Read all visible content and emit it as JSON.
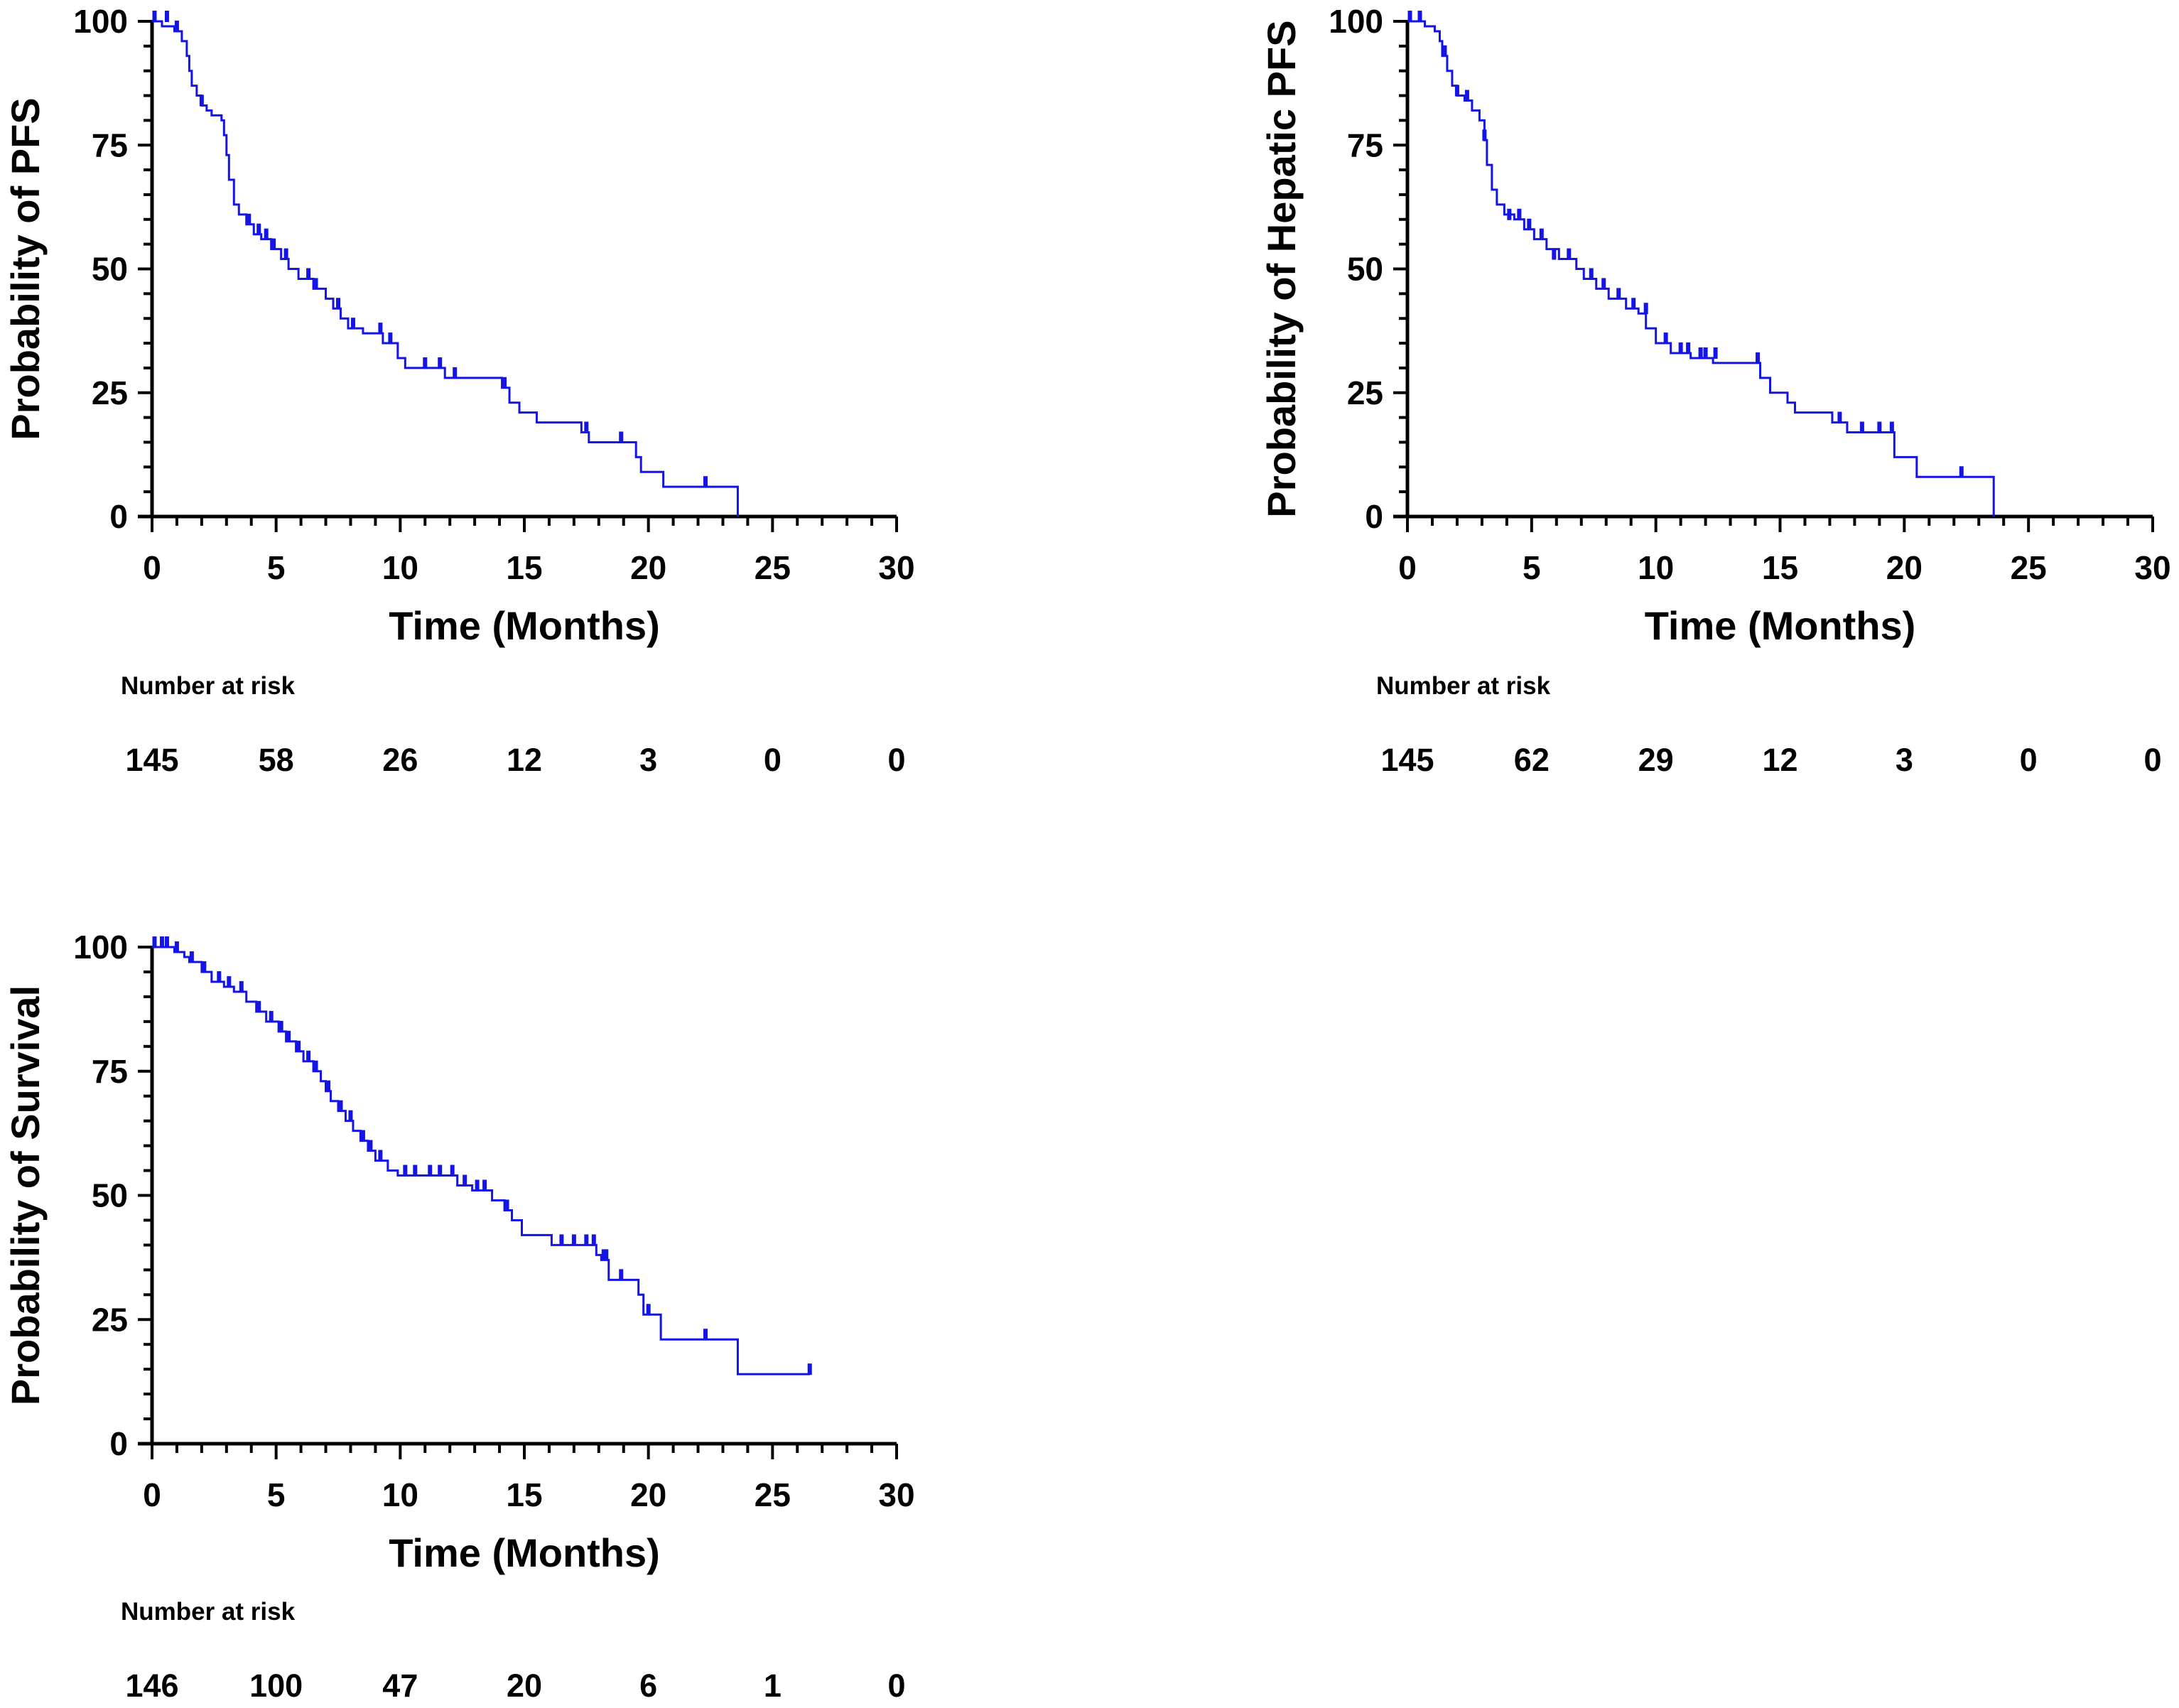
{
  "chart_data": [
    {
      "type": "line",
      "subtype": "kaplan-meier",
      "title": "",
      "xlabel": "Time (Months)",
      "ylabel": "Probability of PFS",
      "xlim": [
        0,
        30
      ],
      "ylim": [
        0,
        100
      ],
      "x_ticks": [
        "0",
        "5",
        "10",
        "15",
        "20",
        "25",
        "30"
      ],
      "y_ticks": [
        "0",
        "25",
        "50",
        "75",
        "100"
      ],
      "line_color": "#1414e6",
      "series": [
        {
          "name": "PFS",
          "steps": [
            [
              0,
              100
            ],
            [
              0.4,
              99
            ],
            [
              0.9,
              98
            ],
            [
              1.2,
              96
            ],
            [
              1.4,
              93
            ],
            [
              1.5,
              90
            ],
            [
              1.6,
              87
            ],
            [
              1.8,
              85
            ],
            [
              2.0,
              83
            ],
            [
              2.2,
              82
            ],
            [
              2.4,
              81
            ],
            [
              2.8,
              80
            ],
            [
              2.9,
              77
            ],
            [
              3.0,
              73
            ],
            [
              3.1,
              68
            ],
            [
              3.3,
              63
            ],
            [
              3.5,
              61
            ],
            [
              3.8,
              59
            ],
            [
              4.1,
              57
            ],
            [
              4.4,
              56
            ],
            [
              4.8,
              54
            ],
            [
              5.2,
              52
            ],
            [
              5.5,
              50
            ],
            [
              5.9,
              48
            ],
            [
              6.5,
              46
            ],
            [
              7.0,
              44
            ],
            [
              7.3,
              42
            ],
            [
              7.6,
              40
            ],
            [
              7.9,
              38
            ],
            [
              8.5,
              37
            ],
            [
              9.3,
              35
            ],
            [
              9.9,
              32
            ],
            [
              10.2,
              30
            ],
            [
              11.8,
              28
            ],
            [
              14.1,
              26
            ],
            [
              14.4,
              23
            ],
            [
              14.8,
              21
            ],
            [
              15.5,
              19
            ],
            [
              17.3,
              17
            ],
            [
              17.6,
              15
            ],
            [
              19.5,
              12
            ],
            [
              19.7,
              9
            ],
            [
              20.6,
              6
            ],
            [
              23.6,
              0
            ]
          ],
          "censored": [
            [
              0.1,
              100
            ],
            [
              0.6,
              100
            ],
            [
              1.0,
              98
            ],
            [
              2.0,
              83
            ],
            [
              3.9,
              59
            ],
            [
              4.3,
              57
            ],
            [
              4.6,
              56
            ],
            [
              4.9,
              54
            ],
            [
              5.4,
              52
            ],
            [
              6.3,
              48
            ],
            [
              6.6,
              46
            ],
            [
              7.5,
              42
            ],
            [
              8.1,
              38
            ],
            [
              9.2,
              37
            ],
            [
              9.6,
              35
            ],
            [
              11.0,
              30
            ],
            [
              11.6,
              30
            ],
            [
              12.2,
              28
            ],
            [
              14.2,
              26
            ],
            [
              17.5,
              17
            ],
            [
              18.9,
              15
            ],
            [
              22.3,
              6
            ]
          ]
        }
      ],
      "number_at_risk": {
        "title": "Number at risk",
        "values": [
          "145",
          "58",
          "26",
          "12",
          "3",
          "0",
          "0"
        ]
      }
    },
    {
      "type": "line",
      "subtype": "kaplan-meier",
      "title": "",
      "xlabel": "Time (Months)",
      "ylabel": "Probability of Hepatic PFS",
      "xlim": [
        0,
        30
      ],
      "ylim": [
        0,
        100
      ],
      "x_ticks": [
        "0",
        "5",
        "10",
        "15",
        "20",
        "25",
        "30"
      ],
      "y_ticks": [
        "0",
        "25",
        "50",
        "75",
        "100"
      ],
      "line_color": "#1414e6",
      "series": [
        {
          "name": "Hepatic PFS",
          "steps": [
            [
              0,
              100
            ],
            [
              0.7,
              99
            ],
            [
              1.1,
              98
            ],
            [
              1.3,
              96
            ],
            [
              1.4,
              93
            ],
            [
              1.6,
              90
            ],
            [
              1.8,
              87
            ],
            [
              2.0,
              85
            ],
            [
              2.3,
              84
            ],
            [
              2.6,
              82
            ],
            [
              2.9,
              80
            ],
            [
              3.1,
              76
            ],
            [
              3.2,
              71
            ],
            [
              3.4,
              66
            ],
            [
              3.6,
              63
            ],
            [
              3.9,
              61
            ],
            [
              4.3,
              60
            ],
            [
              4.7,
              58
            ],
            [
              5.1,
              56
            ],
            [
              5.6,
              54
            ],
            [
              6.1,
              52
            ],
            [
              6.8,
              50
            ],
            [
              7.1,
              48
            ],
            [
              7.6,
              46
            ],
            [
              8.1,
              44
            ],
            [
              8.8,
              42
            ],
            [
              9.3,
              41
            ],
            [
              9.6,
              38
            ],
            [
              10.0,
              35
            ],
            [
              10.6,
              33
            ],
            [
              11.4,
              32
            ],
            [
              12.3,
              31
            ],
            [
              14.2,
              28
            ],
            [
              14.6,
              25
            ],
            [
              15.3,
              23
            ],
            [
              15.6,
              21
            ],
            [
              17.1,
              19
            ],
            [
              17.7,
              17
            ],
            [
              19.6,
              12
            ],
            [
              20.5,
              8
            ],
            [
              23.6,
              0
            ]
          ],
          "censored": [
            [
              0.1,
              100
            ],
            [
              0.5,
              100
            ],
            [
              1.5,
              93
            ],
            [
              2.0,
              85
            ],
            [
              2.4,
              84
            ],
            [
              3.1,
              76
            ],
            [
              4.1,
              60
            ],
            [
              4.5,
              60
            ],
            [
              4.9,
              58
            ],
            [
              5.4,
              56
            ],
            [
              5.9,
              52
            ],
            [
              6.5,
              52
            ],
            [
              7.4,
              48
            ],
            [
              7.9,
              46
            ],
            [
              8.5,
              44
            ],
            [
              9.1,
              42
            ],
            [
              9.6,
              41
            ],
            [
              10.4,
              35
            ],
            [
              11.0,
              33
            ],
            [
              11.3,
              33
            ],
            [
              11.8,
              32
            ],
            [
              12.0,
              32
            ],
            [
              12.4,
              32
            ],
            [
              14.1,
              31
            ],
            [
              17.4,
              19
            ],
            [
              18.3,
              17
            ],
            [
              19.0,
              17
            ],
            [
              19.5,
              17
            ],
            [
              22.3,
              8
            ]
          ]
        }
      ],
      "number_at_risk": {
        "title": "Number at risk",
        "values": [
          "145",
          "62",
          "29",
          "12",
          "3",
          "0",
          "0"
        ]
      }
    },
    {
      "type": "line",
      "subtype": "kaplan-meier",
      "title": "",
      "xlabel": "Time (Months)",
      "ylabel": "Probability of Survival",
      "xlim": [
        0,
        30
      ],
      "ylim": [
        0,
        100
      ],
      "x_ticks": [
        "0",
        "5",
        "10",
        "15",
        "20",
        "25",
        "30"
      ],
      "y_ticks": [
        "0",
        "25",
        "50",
        "75",
        "100"
      ],
      "line_color": "#1414e6",
      "series": [
        {
          "name": "Survival",
          "steps": [
            [
              0,
              100
            ],
            [
              0.9,
              99
            ],
            [
              1.3,
              98
            ],
            [
              1.5,
              97
            ],
            [
              2.0,
              95
            ],
            [
              2.4,
              93
            ],
            [
              2.9,
              92
            ],
            [
              3.3,
              91
            ],
            [
              3.8,
              89
            ],
            [
              4.2,
              87
            ],
            [
              4.6,
              85
            ],
            [
              5.1,
              83
            ],
            [
              5.4,
              81
            ],
            [
              5.8,
              79
            ],
            [
              6.1,
              77
            ],
            [
              6.5,
              75
            ],
            [
              6.8,
              73
            ],
            [
              7.0,
              71
            ],
            [
              7.2,
              69
            ],
            [
              7.5,
              67
            ],
            [
              7.8,
              65
            ],
            [
              8.1,
              63
            ],
            [
              8.4,
              61
            ],
            [
              8.7,
              59
            ],
            [
              9.0,
              57
            ],
            [
              9.5,
              55
            ],
            [
              9.9,
              54
            ],
            [
              12.3,
              52
            ],
            [
              12.9,
              51
            ],
            [
              13.7,
              49
            ],
            [
              14.2,
              47
            ],
            [
              14.5,
              45
            ],
            [
              14.9,
              42
            ],
            [
              16.1,
              40
            ],
            [
              17.9,
              38
            ],
            [
              18.1,
              37
            ],
            [
              18.4,
              33
            ],
            [
              19.6,
              30
            ],
            [
              19.8,
              26
            ],
            [
              20.5,
              21
            ],
            [
              23.6,
              14
            ],
            [
              26.5,
              14
            ]
          ],
          "censored": [
            [
              0.1,
              100
            ],
            [
              0.4,
              100
            ],
            [
              0.6,
              100
            ],
            [
              1.0,
              99
            ],
            [
              1.6,
              97
            ],
            [
              2.1,
              95
            ],
            [
              2.7,
              93
            ],
            [
              3.1,
              92
            ],
            [
              3.6,
              91
            ],
            [
              4.3,
              87
            ],
            [
              4.8,
              85
            ],
            [
              5.2,
              83
            ],
            [
              5.5,
              81
            ],
            [
              5.9,
              79
            ],
            [
              6.3,
              77
            ],
            [
              6.6,
              75
            ],
            [
              7.1,
              71
            ],
            [
              7.6,
              67
            ],
            [
              8.0,
              65
            ],
            [
              8.5,
              61
            ],
            [
              8.8,
              59
            ],
            [
              9.2,
              57
            ],
            [
              10.2,
              54
            ],
            [
              10.6,
              54
            ],
            [
              11.2,
              54
            ],
            [
              11.6,
              54
            ],
            [
              12.1,
              54
            ],
            [
              12.6,
              52
            ],
            [
              13.1,
              51
            ],
            [
              13.4,
              51
            ],
            [
              14.3,
              47
            ],
            [
              16.5,
              40
            ],
            [
              17.0,
              40
            ],
            [
              17.5,
              40
            ],
            [
              17.8,
              40
            ],
            [
              18.2,
              37
            ],
            [
              18.3,
              37
            ],
            [
              18.9,
              33
            ],
            [
              20.0,
              26
            ],
            [
              22.3,
              21
            ],
            [
              26.5,
              14
            ]
          ]
        }
      ],
      "number_at_risk": {
        "title": "Number at risk",
        "values": [
          "146",
          "100",
          "47",
          "20",
          "6",
          "1",
          "0"
        ]
      }
    }
  ]
}
